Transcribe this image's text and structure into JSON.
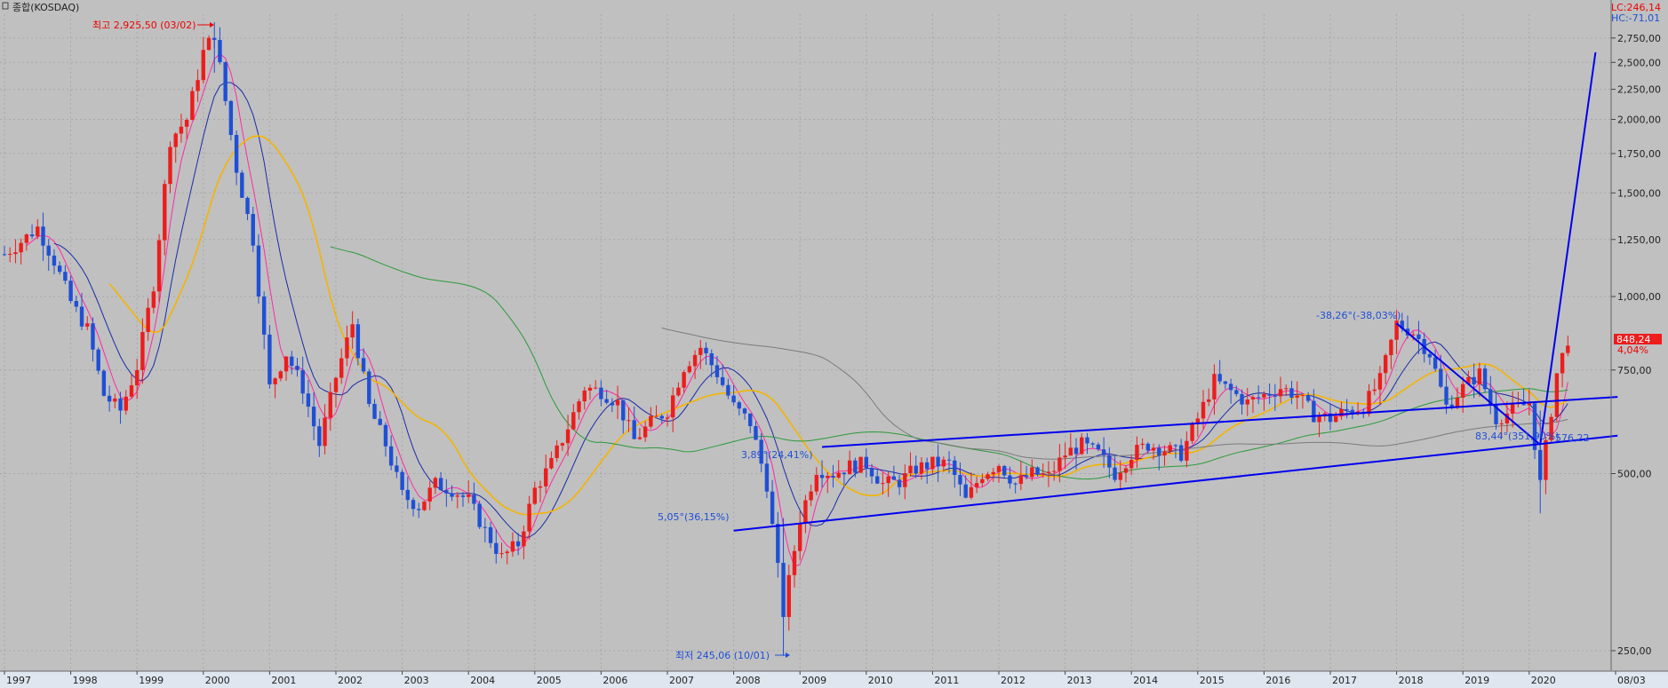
{
  "title": "종합(KOSDAQ)",
  "corner": {
    "lc": "LC:246,14",
    "hc": "HC:-71,01"
  },
  "current": {
    "price_label": "848,24",
    "change_label": "4,04%"
  },
  "x_labels": [
    "1997",
    "1998",
    "1999",
    "2000",
    "2001",
    "2002",
    "2003",
    "2004",
    "2005",
    "2006",
    "2007",
    "2008",
    "2009",
    "2010",
    "2011",
    "2012",
    "2013",
    "2014",
    "2015",
    "2016",
    "2017",
    "2018",
    "2019",
    "2020",
    "08/03"
  ],
  "annotations": {
    "high": "최고 2,925,50 (03/02)",
    "low": "최저 245,06 (10/01)",
    "ann_389": "3,89°(24,41%)",
    "ann_505": "5,05°(36,15%)",
    "ann_3826": "-38,26°(-38,03%)",
    "ann_8344": "83,44°(351,90%)",
    "ann_57622": "576,22"
  },
  "colors": {
    "background": "#c0c0c0",
    "up": "#ee1c1c",
    "down": "#1f4fd6",
    "ma5": "#ff2aa5",
    "ma10": "#1a2ba8",
    "ma20": "#f4b400",
    "ma60": "#2a9a3a",
    "ma120": "#7b7b7b",
    "trend": "#0000ee"
  },
  "chart_data": {
    "type": "candlestick",
    "title": "종합(KOSDAQ)",
    "period": "monthly",
    "y_scale": "log",
    "ylim": [
      230,
      3000
    ],
    "y_ticks": [
      250,
      500,
      750,
      1000,
      1250,
      1500,
      1750,
      2000,
      2250,
      2500,
      2750
    ],
    "y_tick_labels": [
      "250,00",
      "500,00",
      "750,00",
      "1,000,00",
      "1,250,00",
      "1,500,00",
      "1,750,00",
      "2,000,00",
      "2,250,00",
      "2,500,00",
      "2,750,00"
    ],
    "x_ticks": [
      "1997",
      "1998",
      "1999",
      "2000",
      "2001",
      "2002",
      "2003",
      "2004",
      "2005",
      "2006",
      "2007",
      "2008",
      "2009",
      "2010",
      "2011",
      "2012",
      "2013",
      "2014",
      "2015",
      "2016",
      "2017",
      "2018",
      "2019",
      "2020",
      "08/03"
    ],
    "all_time_high": {
      "value": 2925.5,
      "date": "2000-03"
    },
    "all_time_low": {
      "value": 245.06,
      "date": "2008-10"
    },
    "last": {
      "value": 848.24,
      "change_pct": 4.04
    },
    "closes_quarterly": [
      {
        "date": "1997-01",
        "close": 1180
      },
      {
        "date": "1997-04",
        "close": 1240
      },
      {
        "date": "1997-07",
        "close": 1310
      },
      {
        "date": "1997-10",
        "close": 1150
      },
      {
        "date": "1998-01",
        "close": 980
      },
      {
        "date": "1998-04",
        "close": 880
      },
      {
        "date": "1998-07",
        "close": 680
      },
      {
        "date": "1998-10",
        "close": 640
      },
      {
        "date": "1999-01",
        "close": 760
      },
      {
        "date": "1999-04",
        "close": 1050
      },
      {
        "date": "1999-07",
        "close": 1850
      },
      {
        "date": "1999-10",
        "close": 2000
      },
      {
        "date": "2000-01",
        "close": 2600
      },
      {
        "date": "2000-03",
        "close": 2800
      },
      {
        "date": "2000-07",
        "close": 1650
      },
      {
        "date": "2000-10",
        "close": 1250
      },
      {
        "date": "2001-01",
        "close": 700
      },
      {
        "date": "2001-04",
        "close": 800
      },
      {
        "date": "2001-07",
        "close": 700
      },
      {
        "date": "2001-10",
        "close": 560
      },
      {
        "date": "2002-01",
        "close": 730
      },
      {
        "date": "2002-04",
        "close": 900
      },
      {
        "date": "2002-07",
        "close": 650
      },
      {
        "date": "2002-10",
        "close": 560
      },
      {
        "date": "2003-01",
        "close": 460
      },
      {
        "date": "2003-04",
        "close": 440
      },
      {
        "date": "2003-07",
        "close": 480
      },
      {
        "date": "2003-10",
        "close": 470
      },
      {
        "date": "2004-01",
        "close": 450
      },
      {
        "date": "2004-04",
        "close": 400
      },
      {
        "date": "2004-07",
        "close": 360
      },
      {
        "date": "2004-10",
        "close": 380
      },
      {
        "date": "2005-01",
        "close": 470
      },
      {
        "date": "2005-04",
        "close": 520
      },
      {
        "date": "2005-07",
        "close": 600
      },
      {
        "date": "2005-10",
        "close": 700
      },
      {
        "date": "2006-01",
        "close": 690
      },
      {
        "date": "2006-04",
        "close": 660
      },
      {
        "date": "2006-07",
        "close": 570
      },
      {
        "date": "2006-10",
        "close": 610
      },
      {
        "date": "2007-01",
        "close": 640
      },
      {
        "date": "2007-04",
        "close": 760
      },
      {
        "date": "2007-07",
        "close": 820
      },
      {
        "date": "2007-10",
        "close": 740
      },
      {
        "date": "2008-01",
        "close": 650
      },
      {
        "date": "2008-04",
        "close": 610
      },
      {
        "date": "2008-07",
        "close": 480
      },
      {
        "date": "2008-10",
        "close": 290
      },
      {
        "date": "2009-01",
        "close": 420
      },
      {
        "date": "2009-04",
        "close": 510
      },
      {
        "date": "2009-07",
        "close": 500
      },
      {
        "date": "2009-10",
        "close": 515
      },
      {
        "date": "2010-01",
        "close": 520
      },
      {
        "date": "2010-04",
        "close": 480
      },
      {
        "date": "2010-07",
        "close": 485
      },
      {
        "date": "2010-10",
        "close": 510
      },
      {
        "date": "2011-01",
        "close": 520
      },
      {
        "date": "2011-04",
        "close": 520
      },
      {
        "date": "2011-07",
        "close": 450
      },
      {
        "date": "2011-10",
        "close": 500
      },
      {
        "date": "2012-01",
        "close": 520
      },
      {
        "date": "2012-04",
        "close": 480
      },
      {
        "date": "2012-07",
        "close": 500
      },
      {
        "date": "2012-10",
        "close": 495
      },
      {
        "date": "2013-01",
        "close": 540
      },
      {
        "date": "2013-04",
        "close": 560
      },
      {
        "date": "2013-07",
        "close": 540
      },
      {
        "date": "2013-10",
        "close": 500
      },
      {
        "date": "2014-01",
        "close": 540
      },
      {
        "date": "2014-04",
        "close": 560
      },
      {
        "date": "2014-07",
        "close": 550
      },
      {
        "date": "2014-10",
        "close": 540
      },
      {
        "date": "2015-01",
        "close": 620
      },
      {
        "date": "2015-04",
        "close": 720
      },
      {
        "date": "2015-07",
        "close": 690
      },
      {
        "date": "2015-10",
        "close": 660
      },
      {
        "date": "2016-01",
        "close": 680
      },
      {
        "date": "2016-04",
        "close": 700
      },
      {
        "date": "2016-07",
        "close": 680
      },
      {
        "date": "2016-10",
        "close": 630
      },
      {
        "date": "2017-01",
        "close": 620
      },
      {
        "date": "2017-04",
        "close": 640
      },
      {
        "date": "2017-07",
        "close": 650
      },
      {
        "date": "2017-10",
        "close": 720
      },
      {
        "date": "2018-01",
        "close": 900
      },
      {
        "date": "2018-04",
        "close": 870
      },
      {
        "date": "2018-07",
        "close": 800
      },
      {
        "date": "2018-10",
        "close": 650
      },
      {
        "date": "2019-01",
        "close": 700
      },
      {
        "date": "2019-04",
        "close": 740
      },
      {
        "date": "2019-07",
        "close": 620
      },
      {
        "date": "2019-10",
        "close": 640
      },
      {
        "date": "2020-01",
        "close": 660
      },
      {
        "date": "2020-03",
        "close": 480
      },
      {
        "date": "2020-06",
        "close": 740
      },
      {
        "date": "2020-08",
        "close": 848.24
      }
    ]
  }
}
